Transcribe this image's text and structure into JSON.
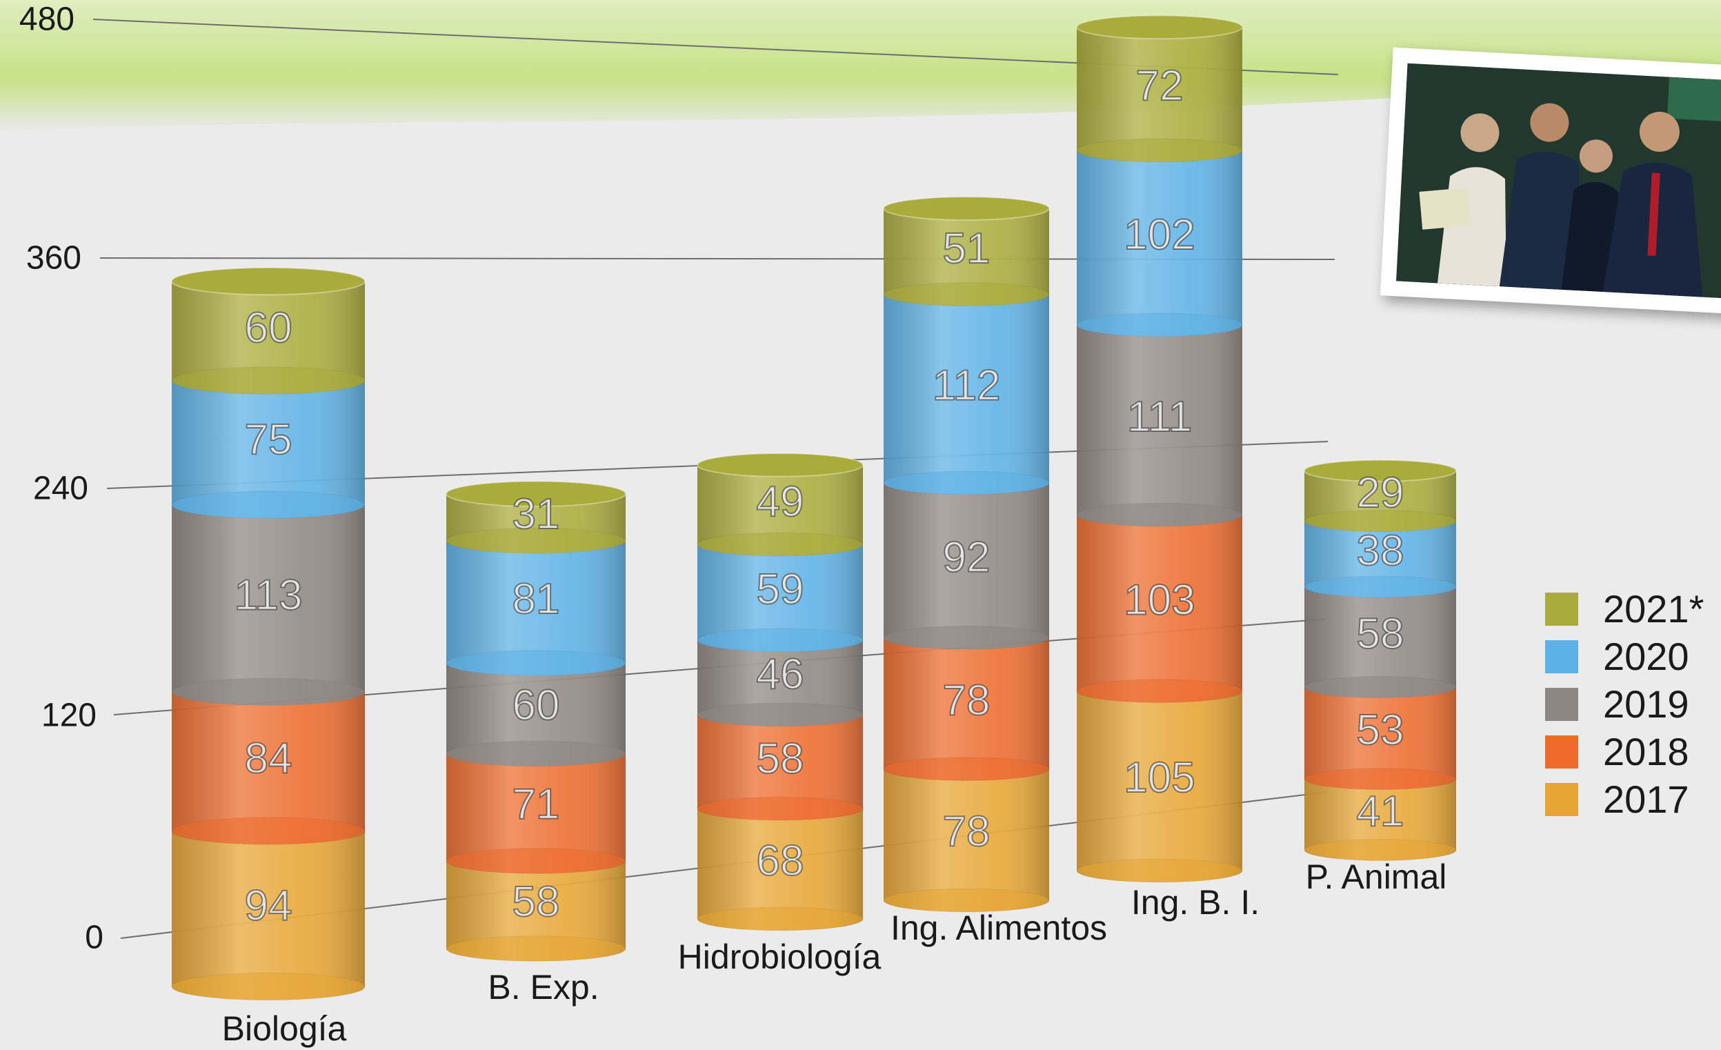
{
  "chart_data": {
    "type": "bar",
    "stacked": true,
    "categories": [
      "Biología",
      "B. Exp.",
      "Hidrobiología",
      "Ing. Alimentos",
      "Ing. B. I.",
      "P. Animal"
    ],
    "yticks": [
      "0",
      "120",
      "240",
      "360",
      "480"
    ],
    "ylim": [
      0,
      480
    ],
    "series": [
      {
        "name": "2017",
        "color": "#e7a532",
        "values": [
          94,
          58,
          68,
          78,
          105,
          41
        ]
      },
      {
        "name": "2018",
        "color": "#ee6a2b",
        "values": [
          84,
          71,
          58,
          78,
          103,
          53
        ]
      },
      {
        "name": "2019",
        "color": "#8e8680",
        "values": [
          113,
          60,
          46,
          92,
          111,
          58
        ]
      },
      {
        "name": "2020",
        "color": "#5cb1e6",
        "values": [
          75,
          81,
          59,
          112,
          102,
          38
        ]
      },
      {
        "name": "2021*",
        "color": "#a9ab3a",
        "values": [
          60,
          31,
          49,
          51,
          72,
          29
        ]
      }
    ],
    "legend_position": "right",
    "grid": true
  },
  "photo": {
    "icon": "graduates-photo"
  }
}
